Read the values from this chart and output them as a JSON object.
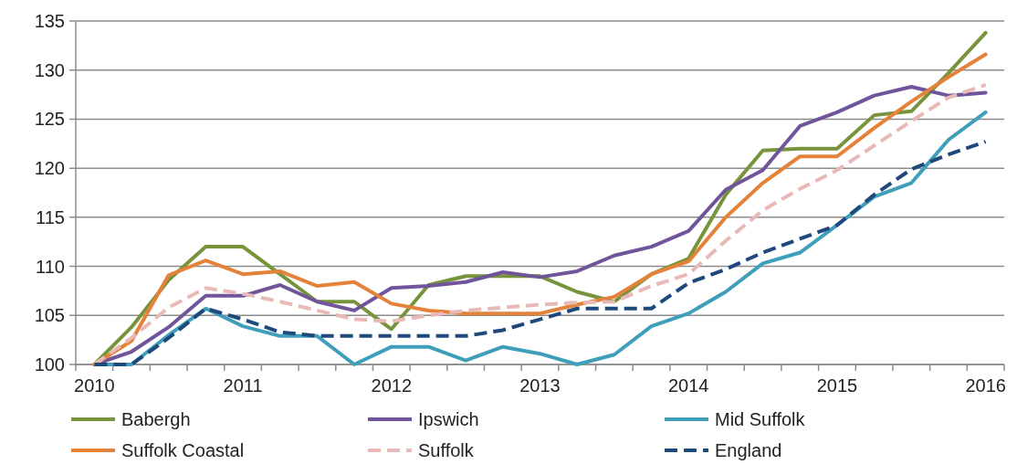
{
  "chart_data": {
    "type": "line",
    "categories": [
      "2010",
      null,
      null,
      null,
      "2011",
      null,
      null,
      null,
      "2012",
      null,
      null,
      null,
      "2013",
      null,
      null,
      null,
      "2014",
      null,
      null,
      null,
      "2015",
      null,
      null,
      null,
      "2016"
    ],
    "ylim": [
      100,
      135
    ],
    "yticks": [
      100,
      105,
      110,
      115,
      120,
      125,
      130,
      135
    ],
    "grid": "y",
    "legend": "bottom",
    "series": [
      {
        "name": "Babergh",
        "color": "#77933c",
        "line_style": "solid",
        "values": [
          100,
          103.8,
          108.6,
          112,
          112,
          109.2,
          106.4,
          106.4,
          103.6,
          108.1,
          109,
          109,
          109,
          107.4,
          106.4,
          109.2,
          110.8,
          117.3,
          121.8,
          122,
          122,
          125.4,
          125.8,
          129.7,
          133.8
        ]
      },
      {
        "name": "Ipswich",
        "color": "#70559a",
        "line_style": "solid",
        "values": [
          100,
          101.3,
          103.8,
          107,
          107,
          108.1,
          106.4,
          105.5,
          107.8,
          108,
          108.4,
          109.4,
          108.9,
          109.5,
          111.1,
          112,
          113.6,
          117.8,
          119.8,
          124.3,
          125.7,
          127.4,
          128.3,
          127.4,
          127.7
        ]
      },
      {
        "name": "Mid Suffolk",
        "color": "#3f9fba",
        "line_style": "solid",
        "values": [
          100,
          100,
          103,
          105.7,
          103.9,
          102.9,
          102.9,
          100,
          101.8,
          101.8,
          100.4,
          101.8,
          101.1,
          100,
          101,
          103.9,
          105.2,
          107.4,
          110.3,
          111.4,
          114.2,
          117.1,
          118.5,
          122.9,
          125.7
        ]
      },
      {
        "name": "Suffolk Coastal",
        "color": "#e4823a",
        "line_style": "solid",
        "values": [
          100,
          102.4,
          109.1,
          110.6,
          109.2,
          109.5,
          108,
          108.4,
          106.2,
          105.5,
          105.2,
          105.2,
          105.2,
          106.1,
          106.9,
          109.2,
          110.5,
          115,
          118.5,
          121.2,
          121.2,
          124.1,
          126.8,
          129.3,
          131.6
        ]
      },
      {
        "name": "Suffolk",
        "color": "#e8b9b7",
        "line_style": "dashed",
        "values": [
          100,
          102.7,
          105.8,
          107.8,
          107.2,
          106.4,
          105.5,
          104.6,
          104.4,
          105,
          105.5,
          105.8,
          106.1,
          106.3,
          106.4,
          108,
          109.2,
          112.6,
          115.7,
          117.9,
          119.8,
          122.3,
          124.8,
          127.2,
          128.5
        ]
      },
      {
        "name": "England",
        "color": "#1f497d",
        "line_style": "dashed",
        "values": [
          100,
          100,
          102.7,
          105.7,
          104.6,
          103.3,
          102.9,
          102.9,
          102.9,
          102.9,
          102.9,
          103.5,
          104.6,
          105.7,
          105.7,
          105.7,
          108.3,
          109.7,
          111.4,
          112.8,
          114.2,
          117.3,
          119.9,
          121.4,
          122.7
        ]
      }
    ]
  }
}
